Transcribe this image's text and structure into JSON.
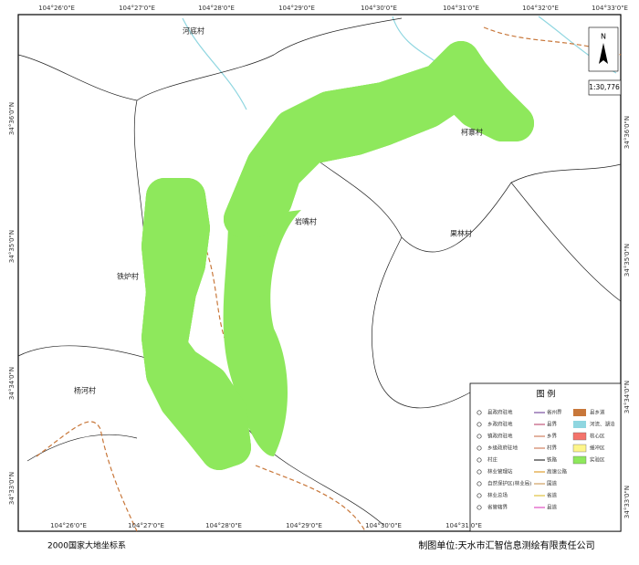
{
  "map": {
    "coords_top": [
      "104°26'0\"E",
      "104°27'0\"E",
      "104°28'0\"E",
      "104°29'0\"E",
      "104°30'0\"E",
      "104°31'0\"E",
      "104°32'0\"E",
      "104°33'0\"E"
    ],
    "coords_bottom": [
      "104°26'0\"E",
      "104°27'0\"E",
      "104°28'0\"E",
      "104°29'0\"E",
      "104°30'0\"E",
      "104°31'0\"E"
    ],
    "coords_side": [
      "34°36'0\"N",
      "34°35'0\"N",
      "34°34'0\"N",
      "34°33'0\"N"
    ],
    "villages": [
      "河底村",
      "岩嘴村",
      "柯寨村",
      "果林村",
      "铁炉村",
      "杨河村"
    ],
    "north": "N",
    "scale": "1:30,776",
    "legend": {
      "title": "图 例",
      "col1": [
        "县政府驻地",
        "乡政府驻地",
        "镇政府驻地",
        "乡级政府驻地",
        "村庄",
        "林业管理站",
        "自然保护区(林业局)",
        "林业总场",
        "省管辖界"
      ],
      "col2": [
        "省州界",
        "县界",
        "乡界",
        "村界",
        "铁路",
        "高速公路",
        "国道",
        "省道",
        "县道"
      ],
      "col3": [
        "县乡道",
        "河流、湖泊",
        "核心区",
        "缓冲区",
        "实验区"
      ]
    }
  },
  "footer": {
    "left": "2000国家大地坐标系",
    "right": "制图单位:天水市汇智信息测绘有限责任公司"
  }
}
